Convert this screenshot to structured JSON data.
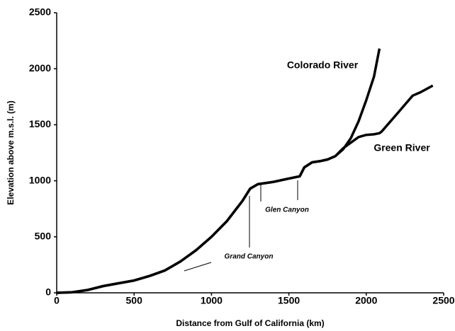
{
  "chart_data": {
    "type": "line",
    "x_label": "Distance from Gulf of California (km)",
    "y_label": "Elevation above m.s.l. (m)",
    "x": [
      0,
      100,
      200,
      300,
      400,
      500,
      600,
      700,
      800,
      900,
      1000,
      1100,
      1200,
      1250,
      1300,
      1400,
      1500,
      1570,
      1600,
      1650,
      1700,
      1750,
      1800,
      1850,
      1900,
      1950,
      2000,
      2050,
      2085,
      2100,
      2150,
      2200,
      2250,
      2300,
      2350,
      2430
    ],
    "series": [
      {
        "name": "Colorado River",
        "color": "#000000",
        "values": [
          0,
          5,
          25,
          60,
          85,
          110,
          150,
          200,
          280,
          380,
          500,
          640,
          820,
          930,
          970,
          990,
          1020,
          1040,
          1120,
          1165,
          1175,
          1190,
          1220,
          1280,
          1380,
          1530,
          1720,
          1930,
          2180,
          null,
          null,
          null,
          null,
          null,
          null,
          null
        ]
      },
      {
        "name": "Green River",
        "color": "#000000",
        "values": [
          0,
          5,
          25,
          60,
          85,
          110,
          150,
          200,
          280,
          380,
          500,
          640,
          820,
          930,
          970,
          990,
          1020,
          1040,
          1120,
          1165,
          1175,
          1190,
          1220,
          1290,
          1340,
          1390,
          1410,
          1415,
          1425,
          1440,
          1520,
          1600,
          1680,
          1760,
          1790,
          1850
        ]
      }
    ],
    "annotations": [
      "Glen Canyon",
      "Grand Canyon"
    ],
    "xlim": [
      0,
      2500
    ],
    "ylim": [
      0,
      2500
    ],
    "xticks": [
      0,
      500,
      1000,
      1500,
      2000,
      2500
    ],
    "yticks": [
      0,
      500,
      1000,
      1500,
      2000,
      2500
    ],
    "grid": false
  }
}
